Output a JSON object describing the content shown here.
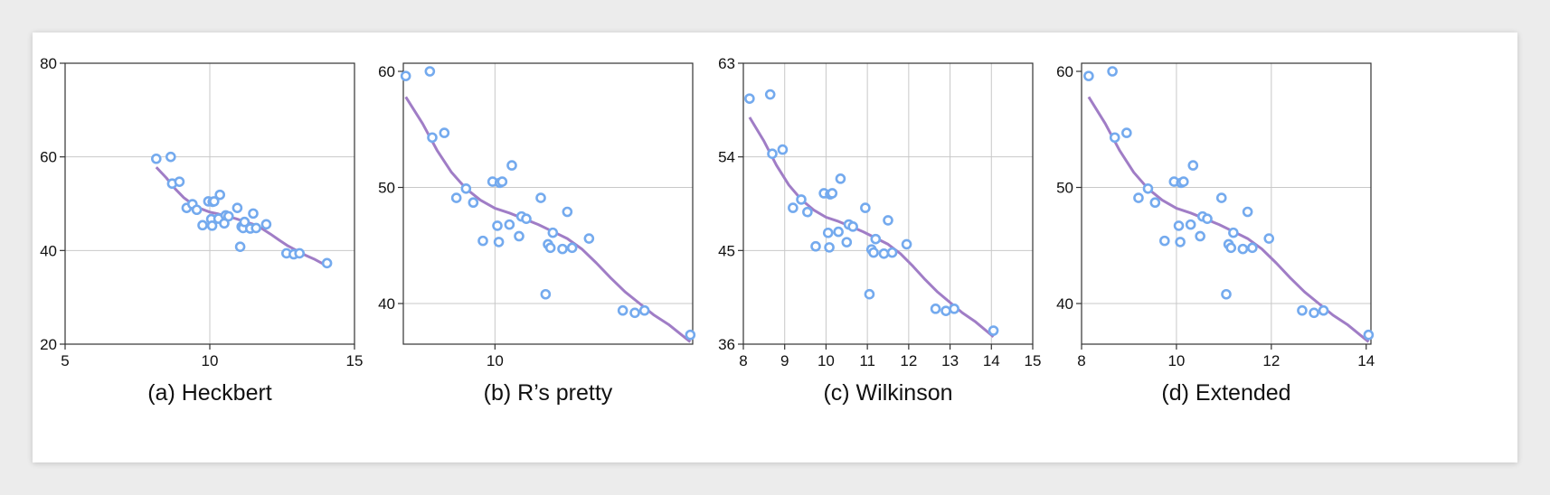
{
  "chart_data": [
    {
      "type": "scatter",
      "caption": "(a) Heckbert",
      "xlim": [
        5,
        15
      ],
      "ylim": [
        20,
        80
      ],
      "xticks": [
        5,
        10,
        15
      ],
      "yticks": [
        20,
        40,
        60,
        80
      ],
      "xgrid": [
        10
      ],
      "ygrid": [
        40,
        60
      ],
      "grid": true,
      "point_color": "#74aaee",
      "line_color": "#a07dc6"
    },
    {
      "type": "scatter",
      "caption": "(b) R’s pretty",
      "xlim": [
        8.1,
        14.1
      ],
      "ylim": [
        36.5,
        60.7
      ],
      "xticks": [
        10
      ],
      "yticks": [
        40,
        50,
        60
      ],
      "xgrid": [
        10
      ],
      "ygrid": [
        40,
        50
      ],
      "grid": true,
      "point_color": "#74aaee",
      "line_color": "#a07dc6"
    },
    {
      "type": "scatter",
      "caption": "(c) Wilkinson",
      "xlim": [
        8,
        15
      ],
      "ylim": [
        36,
        63
      ],
      "xticks": [
        8,
        9,
        10,
        11,
        12,
        13,
        14,
        15
      ],
      "yticks": [
        36,
        45,
        54,
        63
      ],
      "xgrid": [
        9,
        10,
        11,
        12,
        13,
        14
      ],
      "ygrid": [
        45,
        54
      ],
      "grid": true,
      "point_color": "#74aaee",
      "line_color": "#a07dc6"
    },
    {
      "type": "scatter",
      "caption": "(d) Extended",
      "xlim": [
        8,
        14.1
      ],
      "ylim": [
        36.5,
        60.7
      ],
      "xticks": [
        8,
        10,
        12,
        14
      ],
      "yticks": [
        40,
        50,
        60
      ],
      "xgrid": [
        10,
        12
      ],
      "ygrid": [
        40,
        50
      ],
      "grid": true,
      "point_color": "#74aaee",
      "line_color": "#a07dc6"
    }
  ],
  "points": [
    [
      8.15,
      59.6
    ],
    [
      8.65,
      60.0
    ],
    [
      8.7,
      54.3
    ],
    [
      8.95,
      54.7
    ],
    [
      9.2,
      49.1
    ],
    [
      9.4,
      49.9
    ],
    [
      9.55,
      48.7
    ],
    [
      9.75,
      45.4
    ],
    [
      9.95,
      50.5
    ],
    [
      10.05,
      46.7
    ],
    [
      10.08,
      45.3
    ],
    [
      10.1,
      50.4
    ],
    [
      10.15,
      50.5
    ],
    [
      10.3,
      46.8
    ],
    [
      10.35,
      51.9
    ],
    [
      10.5,
      45.8
    ],
    [
      10.55,
      47.5
    ],
    [
      10.65,
      47.3
    ],
    [
      10.95,
      49.1
    ],
    [
      11.05,
      40.8
    ],
    [
      11.1,
      45.1
    ],
    [
      11.15,
      44.8
    ],
    [
      11.2,
      46.1
    ],
    [
      11.4,
      44.7
    ],
    [
      11.5,
      47.9
    ],
    [
      11.6,
      44.8
    ],
    [
      11.95,
      45.6
    ],
    [
      12.65,
      39.4
    ],
    [
      12.9,
      39.2
    ],
    [
      13.1,
      39.4
    ],
    [
      14.05,
      37.3
    ]
  ],
  "trend": [
    [
      8.15,
      57.8
    ],
    [
      8.5,
      55.5
    ],
    [
      8.8,
      53.2
    ],
    [
      9.1,
      51.3
    ],
    [
      9.4,
      49.9
    ],
    [
      9.7,
      48.9
    ],
    [
      10.0,
      48.2
    ],
    [
      10.3,
      47.8
    ],
    [
      10.6,
      47.3
    ],
    [
      10.9,
      46.8
    ],
    [
      11.2,
      46.2
    ],
    [
      11.5,
      45.6
    ],
    [
      11.8,
      44.7
    ],
    [
      12.1,
      43.5
    ],
    [
      12.4,
      42.2
    ],
    [
      12.7,
      41.0
    ],
    [
      13.0,
      40.0
    ],
    [
      13.3,
      39.0
    ],
    [
      13.6,
      38.2
    ],
    [
      14.05,
      36.7
    ]
  ]
}
